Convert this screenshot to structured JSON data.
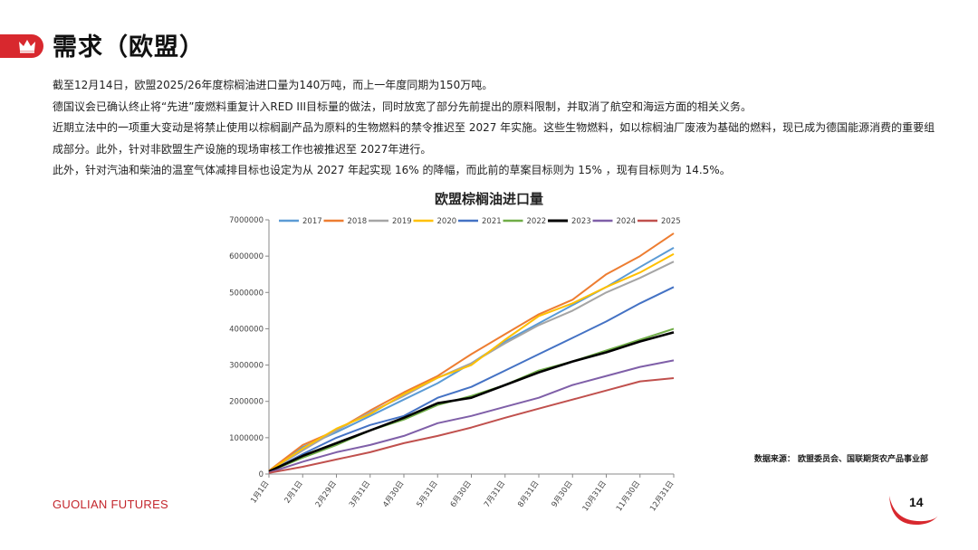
{
  "header": {
    "title": "需求（欧盟）",
    "logo_icon": "crown-icon",
    "accent_color": "#d8282e"
  },
  "paragraphs": [
    "截至12月14日，欧盟2025/26年度棕榈油进口量为140万吨，而上一年度同期为150万吨。",
    "德国议会已确认终止将“先进”废燃料重复计入RED III目标量的做法，同时放宽了部分先前提出的原料限制，并取消了航空和海运方面的相关义务。",
    "近期立法中的一项重大变动是将禁止使用以棕榈副产品为原料的生物燃料的禁令推迟至 2027 年实施。这些生物燃料，如以棕榈油厂废液为基础的燃料，现已成为德国能源消费的重要组成部分。此外，针对非欧盟生产设施的现场审核工作也被推迟至 2027年进行。",
    "此外，针对汽油和柴油的温室气体减排目标也设定为从 2027 年起实现 16% 的降幅，而此前的草案目标则为 15% ，现有目标则为 14.5%。"
  ],
  "chart_data": {
    "type": "line",
    "title": "欧盟棕榈油进口量",
    "xlabel": "",
    "ylabel": "",
    "ylim": [
      0,
      7000000
    ],
    "yticks": [
      "0",
      "1000000",
      "2000000",
      "3000000",
      "4000000",
      "5000000",
      "6000000",
      "7000000"
    ],
    "x_ticks": [
      "1月1日",
      "2月1日",
      "2月29日",
      "3月31日",
      "4月30日",
      "5月31日",
      "6月30日",
      "7月31日",
      "8月31日",
      "9月30日",
      "10月31日",
      "11月30日",
      "12月31日"
    ],
    "grid": false,
    "legend_position": "top",
    "series": [
      {
        "name": "2017",
        "color": "#5b9bd5",
        "values": [
          60000,
          740000,
          1150000,
          1600000,
          2050000,
          2500000,
          3050000,
          3650000,
          4150000,
          4650000,
          5150000,
          5700000,
          6230000
        ]
      },
      {
        "name": "2018",
        "color": "#ed7d31",
        "values": [
          90000,
          800000,
          1200000,
          1750000,
          2250000,
          2700000,
          3300000,
          3850000,
          4400000,
          4800000,
          5500000,
          6000000,
          6630000
        ]
      },
      {
        "name": "2019",
        "color": "#a5a5a5",
        "values": [
          70000,
          650000,
          1200000,
          1700000,
          2150000,
          2650000,
          3050000,
          3600000,
          4100000,
          4500000,
          5000000,
          5400000,
          5850000
        ]
      },
      {
        "name": "2020",
        "color": "#ffc000",
        "values": [
          80000,
          700000,
          1250000,
          1650000,
          2200000,
          2650000,
          3000000,
          3700000,
          4350000,
          4700000,
          5150000,
          5550000,
          6060000
        ]
      },
      {
        "name": "2021",
        "color": "#4472c4",
        "values": [
          50000,
          550000,
          1000000,
          1350000,
          1600000,
          2100000,
          2400000,
          2850000,
          3300000,
          3750000,
          4200000,
          4700000,
          5150000
        ]
      },
      {
        "name": "2022",
        "color": "#70ad47",
        "values": [
          60000,
          450000,
          800000,
          1200000,
          1500000,
          1900000,
          2150000,
          2450000,
          2850000,
          3100000,
          3400000,
          3700000,
          4000000
        ]
      },
      {
        "name": "2023",
        "color": "#000000",
        "values": [
          70000,
          500000,
          850000,
          1200000,
          1550000,
          1950000,
          2100000,
          2450000,
          2800000,
          3100000,
          3350000,
          3650000,
          3900000
        ]
      },
      {
        "name": "2024",
        "color": "#7f5fa8",
        "values": [
          40000,
          340000,
          600000,
          800000,
          1050000,
          1400000,
          1600000,
          1850000,
          2100000,
          2450000,
          2700000,
          2950000,
          3130000
        ]
      },
      {
        "name": "2025",
        "color": "#c0504d",
        "values": [
          30000,
          200000,
          400000,
          600000,
          850000,
          1050000,
          1280000,
          1550000,
          1800000,
          2050000,
          2300000,
          2550000,
          2640000
        ]
      }
    ]
  },
  "source": "数据来源：  欧盟委员会、国联期货农产品事业部",
  "footer": {
    "brand": "GUOLIAN FUTURES",
    "page_number": "14"
  }
}
